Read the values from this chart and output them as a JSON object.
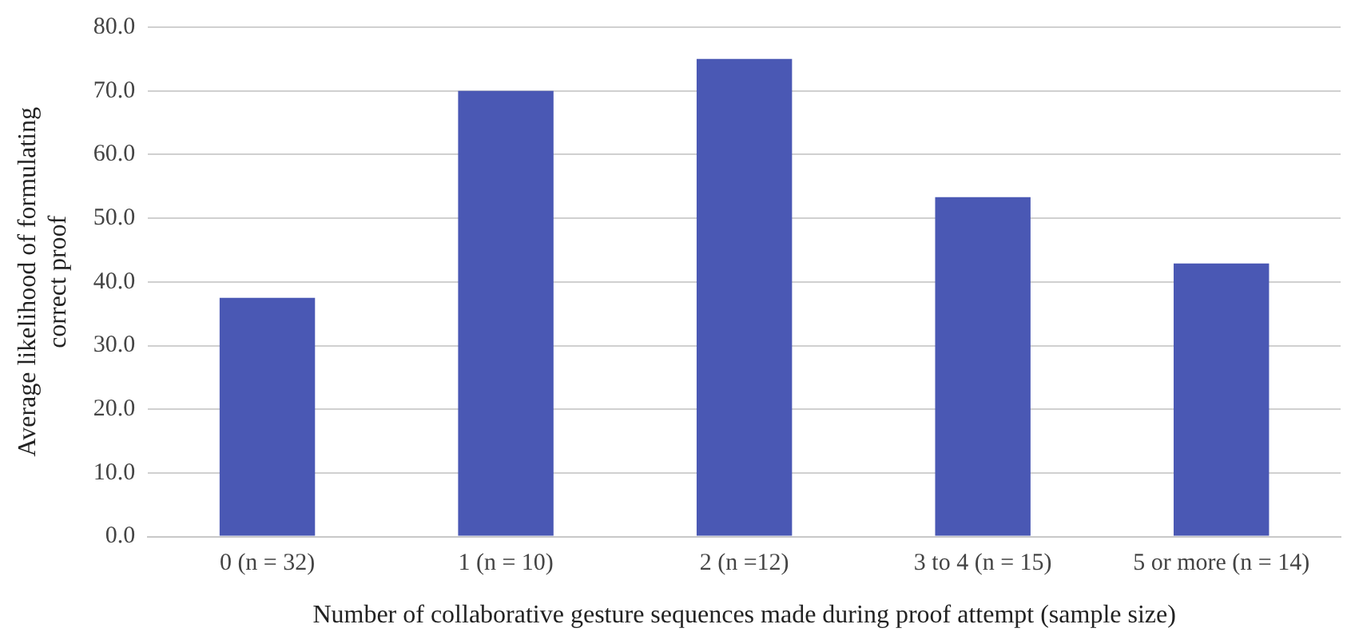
{
  "chart_data": {
    "type": "bar",
    "xlabel": "Number of collaborative gesture sequences made during proof attempt (sample size)",
    "ylabel": "Average likelihood of formulating correct proof",
    "categories": [
      "0 (n = 32)",
      "1 (n = 10)",
      "2 (n =12)",
      "3 to 4 (n = 15)",
      "5 or more (n = 14)"
    ],
    "values": [
      37.5,
      70.0,
      75.0,
      53.3,
      42.9
    ],
    "color": "#4a58b4",
    "ylim": [
      0,
      80
    ],
    "yticks": [
      {
        "value": 0,
        "label": "0.0"
      },
      {
        "value": 10,
        "label": "10.0"
      },
      {
        "value": 20,
        "label": "20.0"
      },
      {
        "value": 30,
        "label": "30.0"
      },
      {
        "value": 40,
        "label": "40.0"
      },
      {
        "value": 50,
        "label": "50.0"
      },
      {
        "value": 60,
        "label": "60.0"
      },
      {
        "value": 70,
        "label": "70.0"
      },
      {
        "value": 80,
        "label": "80.0"
      }
    ],
    "grid": "y",
    "legend": false
  }
}
